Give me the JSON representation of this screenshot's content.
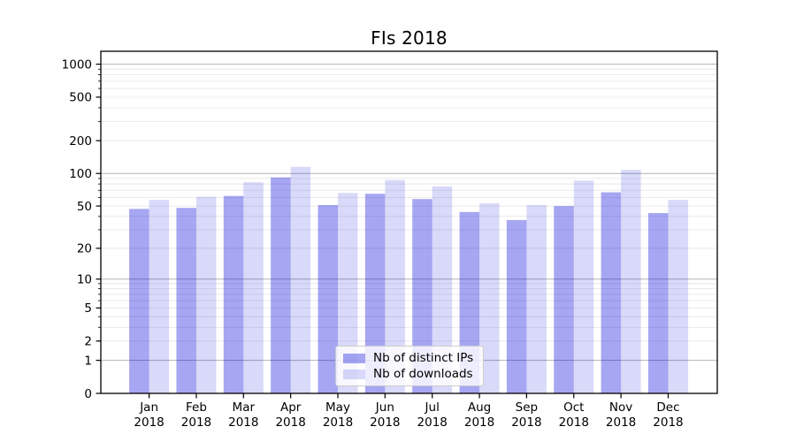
{
  "title": "FIs 2018",
  "chart_data": {
    "type": "bar",
    "title": "FIs 2018",
    "categories": [
      "Jan 2018",
      "Feb 2018",
      "Mar 2018",
      "Apr 2018",
      "May 2018",
      "Jun 2018",
      "Jul 2018",
      "Aug 2018",
      "Sep 2018",
      "Oct 2018",
      "Nov 2018",
      "Dec 2018"
    ],
    "series": [
      {
        "name": "Nb of distinct IPs",
        "color": "rgba(0,0,218,0.35)",
        "color_hex_on_white": "#a6a6f2",
        "values": [
          47,
          48,
          62,
          92,
          51,
          65,
          58,
          44,
          37,
          50,
          67,
          43
        ]
      },
      {
        "name": "Nb of downloads",
        "color": "rgba(0,0,218,0.15)",
        "color_hex_on_white": "#d9d9f9",
        "values": [
          57,
          61,
          83,
          115,
          66,
          87,
          76,
          53,
          51,
          86,
          108,
          57
        ]
      }
    ],
    "xlabel": "",
    "ylabel": "",
    "yscale": "log1p",
    "yticks": [
      0,
      1,
      2,
      5,
      10,
      20,
      50,
      100,
      200,
      500,
      1000
    ],
    "ylim": [
      0,
      1320
    ],
    "grid": true,
    "legend_position": "lower center",
    "colors": {
      "major_grid": "#b3b3b3",
      "minor_grid": "#e8e8e8",
      "spine": "#000000",
      "text": "#000000"
    }
  }
}
